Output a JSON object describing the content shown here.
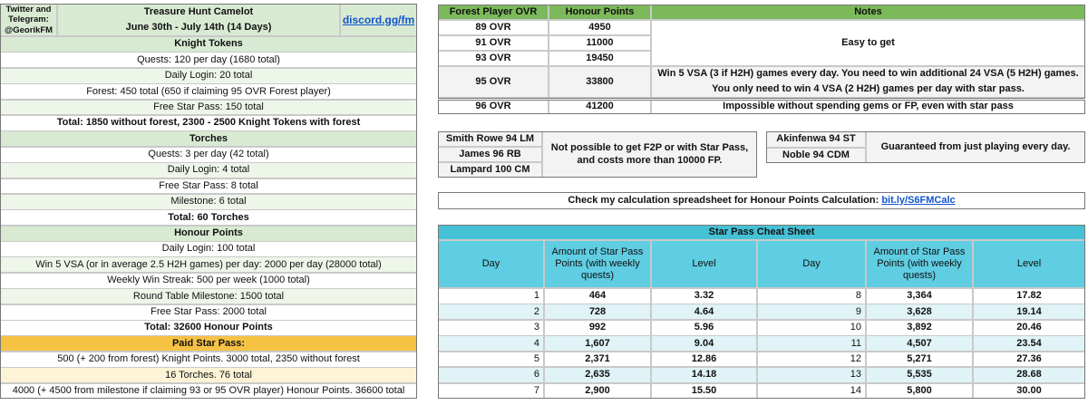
{
  "header": {
    "social": "Twitter and Telegram: @GeorikFM",
    "title": "Treasure Hunt Camelot",
    "dates": "June 30th - July 14th (14 Days)",
    "link": "discord.gg/fm"
  },
  "knight_tokens": {
    "title": "Knight Tokens",
    "items": [
      "Quests: 120 per day (1680 total)",
      "Daily Login: 20 total",
      "Forest: 450 total (650 if claiming 95 OVR Forest player)",
      "Free Star Pass: 150 total"
    ],
    "total": "Total: 1850 without forest, 2300 - 2500 Knight Tokens with forest"
  },
  "torches": {
    "title": "Torches",
    "items": [
      "Quests: 3 per day (42 total)",
      "Daily Login: 4 total",
      "Free Star Pass: 8 total",
      "Milestone: 6 total"
    ],
    "total": "Total: 60 Torches"
  },
  "honour_points": {
    "title": "Honour Points",
    "items": [
      "Daily Login: 100 total",
      "Win 5 VSA (or in average 2.5 H2H games) per day: 2000 per day (28000 total)",
      "Weekly Win Streak: 500 per week (1000 total)",
      "Round Table Milestone: 1500 total",
      "Free Star Pass: 2000 total"
    ],
    "total": "Total: 32600 Honour Points"
  },
  "paid_star_pass": {
    "title": "Paid Star Pass:",
    "items": [
      "500 (+ 200 from forest) Knight Points. 3000 total, 2350 without forest",
      "16 Torches. 76 total",
      "4000 (+ 4500 from milestone if claiming 93 or 95 OVR player) Honour Points. 36600 total"
    ]
  },
  "ovr_table": {
    "headers": [
      "Forest Player OVR",
      "Honour Points",
      "Notes"
    ],
    "rows": [
      [
        "89 OVR",
        "4950"
      ],
      [
        "91 OVR",
        "11000"
      ],
      [
        "93 OVR",
        "19450"
      ],
      [
        "95 OVR",
        "33800"
      ],
      [
        "96 OVR",
        "41200"
      ]
    ],
    "notes": [
      "Easy to get",
      "Win 5 VSA (3 if H2H) games every day. You need to win additional 24 VSA (5 H2H) games.",
      "You only need to win 4 VSA (2 H2H) games per day with star pass.",
      "Impossible without spending gems or FP, even with star pass"
    ]
  },
  "players": {
    "no_f2p": {
      "names": [
        "Smith Rowe 94 LM",
        "James 96 RB",
        "Lampard 100 CM"
      ],
      "note": "Not possible to get F2P or with Star Pass, and costs more than 10000 FP."
    },
    "guaranteed": {
      "names": [
        "Akinfenwa 94 ST",
        "Noble 94 CDM"
      ],
      "note": "Guaranteed from just playing every day."
    }
  },
  "calc": {
    "text": "Check my calculation spreadsheet for Honour Points Calculation:",
    "link": "bit.ly/S6FMCalc"
  },
  "cheat_sheet": {
    "title": "Star Pass Cheat Sheet",
    "headers": [
      "Day",
      "Amount of Star Pass Points (with weekly quests)",
      "Level",
      "Day",
      "Amount of Star Pass Points (with weekly quests)",
      "Level"
    ],
    "rows": [
      [
        "1",
        "464",
        "3.32",
        "8",
        "3,364",
        "17.82"
      ],
      [
        "2",
        "728",
        "4.64",
        "9",
        "3,628",
        "19.14"
      ],
      [
        "3",
        "992",
        "5.96",
        "10",
        "3,892",
        "20.46"
      ],
      [
        "4",
        "1,607",
        "9.04",
        "11",
        "4,507",
        "23.54"
      ],
      [
        "5",
        "2,371",
        "12.86",
        "12",
        "5,271",
        "27.36"
      ],
      [
        "6",
        "2,635",
        "14.18",
        "13",
        "5,535",
        "28.68"
      ],
      [
        "7",
        "2,900",
        "15.50",
        "14",
        "5,800",
        "30.00"
      ]
    ]
  }
}
